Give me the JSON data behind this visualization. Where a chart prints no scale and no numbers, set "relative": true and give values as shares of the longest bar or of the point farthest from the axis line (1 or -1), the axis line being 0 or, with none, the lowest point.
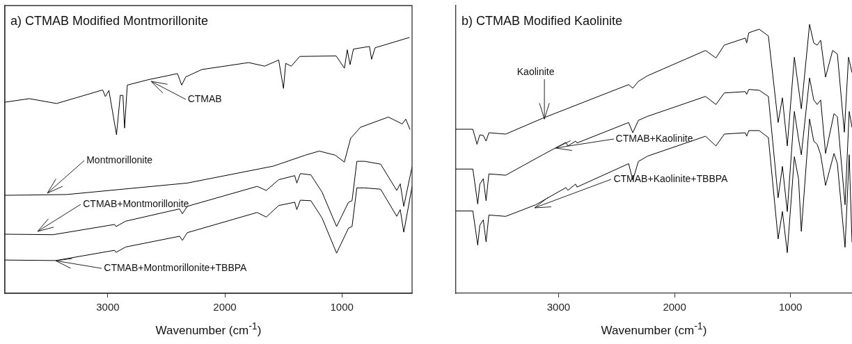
{
  "chart_data": [
    {
      "type": "line",
      "title": "a) CTMAB Modified Montmorillonite",
      "xlabel": "Wavenumber (cm$^{-1}$)",
      "relative": true,
      "xlim": [
        3880,
        400
      ],
      "xticks": [
        3000,
        2000,
        1000
      ],
      "series": [
        {
          "color": "#000000",
          "x": [
            3880,
            3671,
            3438,
            3044,
            3021,
            2991,
            2926,
            2894,
            2871,
            2857,
            2834,
            2655,
            2405,
            2369,
            2334,
            2196,
            1797,
            1660,
            1540,
            1499,
            1480,
            1432,
            1360,
            1049,
            978,
            954,
            930,
            901,
            764,
            746,
            716,
            424
          ],
          "values": [
            0.747,
            0.761,
            0.742,
            0.795,
            0.769,
            0.793,
            0.62,
            0.774,
            0.774,
            0.646,
            0.814,
            0.835,
            0.859,
            0.814,
            0.846,
            0.875,
            0.902,
            0.888,
            0.912,
            0.801,
            0.899,
            0.888,
            0.926,
            0.928,
            0.88,
            0.952,
            0.894,
            0.955,
            0.965,
            0.915,
            0.96,
            1.0
          ]
        },
        {
          "color": "#000000",
          "x": [
            3880,
            3354,
            2321,
            1587,
            1312,
            1193,
            1057,
            979,
            925,
            841,
            603,
            484,
            454,
            418
          ],
          "values": [
            0.383,
            0.386,
            0.431,
            0.497,
            0.54,
            0.556,
            0.54,
            0.513,
            0.606,
            0.649,
            0.689,
            0.662,
            0.681,
            0.641
          ]
        },
        {
          "color": "#000000",
          "x": [
            3880,
            3468,
            2943,
            2930,
            2847,
            2387,
            2363,
            2321,
            1724,
            1646,
            1540,
            1403,
            1385,
            1355,
            1265,
            1170,
            1045,
            943,
            913,
            872,
            806,
            669,
            531,
            501,
            471,
            400
          ],
          "values": [
            0.231,
            0.229,
            0.269,
            0.261,
            0.282,
            0.33,
            0.311,
            0.34,
            0.418,
            0.402,
            0.444,
            0.46,
            0.431,
            0.468,
            0.463,
            0.396,
            0.261,
            0.356,
            0.362,
            0.516,
            0.516,
            0.505,
            0.402,
            0.428,
            0.34,
            0.495
          ]
        },
        {
          "color": "#000000",
          "x": [
            3880,
            3444,
            2943,
            2930,
            2847,
            2387,
            2363,
            2321,
            1724,
            1646,
            1540,
            1403,
            1385,
            1355,
            1265,
            1170,
            1045,
            943,
            913,
            872,
            806,
            669,
            531,
            501,
            471,
            400
          ],
          "values": [
            0.13,
            0.128,
            0.168,
            0.16,
            0.181,
            0.223,
            0.207,
            0.237,
            0.316,
            0.298,
            0.343,
            0.356,
            0.327,
            0.364,
            0.362,
            0.295,
            0.157,
            0.255,
            0.261,
            0.412,
            0.412,
            0.407,
            0.301,
            0.327,
            0.239,
            0.418
          ]
        }
      ],
      "annotations": [
        {
          "text": "CTMAB",
          "x": 2633,
          "y": 0.83
        },
        {
          "text": "Montmorillonite",
          "x": 3516,
          "y": 0.391
        },
        {
          "text": "CTMAB+Montmorillonite",
          "x": 3599,
          "y": 0.242
        },
        {
          "text": "CTMAB+Montmorillonite+TBBPA",
          "x": 3444,
          "y": 0.128
        }
      ]
    },
    {
      "type": "line",
      "title": "b) CTMAB Modified Kaolinite",
      "xlabel": "Wavenumber (cm$^{-1}$)",
      "relative": true,
      "xlim": [
        3885,
        470
      ],
      "xticks": [
        3000,
        2000,
        1000
      ],
      "series": [
        {
          "color": "#000000",
          "x": [
            3885,
            3739,
            3703,
            3679,
            3649,
            3625,
            3601,
            3456,
            3137,
            2396,
            2360,
            2312,
            2233,
            1733,
            1643,
            1571,
            1390,
            1378,
            1360,
            1270,
            1191,
            1107,
            1070,
            1028,
            967,
            931,
            907,
            836,
            800,
            770,
            740,
            698,
            637,
            596,
            536,
            500,
            470
          ],
          "values": [
            0.61,
            0.61,
            0.554,
            0.589,
            0.587,
            0.566,
            0.597,
            0.592,
            0.651,
            0.776,
            0.763,
            0.788,
            0.809,
            0.903,
            0.875,
            0.923,
            0.949,
            0.931,
            0.969,
            0.982,
            0.957,
            0.635,
            0.727,
            0.548,
            0.878,
            0.763,
            0.686,
            1.0,
            0.931,
            0.923,
            0.941,
            0.804,
            0.903,
            0.89,
            0.599,
            0.878,
            0.821
          ]
        },
        {
          "color": "#000000",
          "x": [
            3885,
            3739,
            3697,
            3679,
            3649,
            3625,
            3601,
            3456,
            3137,
            2937,
            2919,
            2853,
            2841,
            2396,
            2360,
            2312,
            2233,
            1733,
            1643,
            1571,
            1390,
            1378,
            1360,
            1270,
            1191,
            1107,
            1070,
            1028,
            967,
            931,
            907,
            836,
            800,
            770,
            740,
            698,
            625,
            596,
            530,
            494,
            470
          ],
          "values": [
            0.462,
            0.462,
            0.332,
            0.406,
            0.426,
            0.344,
            0.444,
            0.439,
            0.515,
            0.561,
            0.548,
            0.566,
            0.559,
            0.635,
            0.597,
            0.643,
            0.658,
            0.732,
            0.702,
            0.745,
            0.75,
            0.74,
            0.758,
            0.755,
            0.732,
            0.355,
            0.472,
            0.304,
            0.676,
            0.574,
            0.515,
            0.801,
            0.719,
            0.702,
            0.719,
            0.52,
            0.668,
            0.656,
            0.329,
            0.676,
            0.617
          ]
        },
        {
          "color": "#000000",
          "x": [
            3885,
            3739,
            3697,
            3679,
            3649,
            3625,
            3601,
            3456,
            3197,
            2937,
            2919,
            2853,
            2841,
            2396,
            2360,
            2312,
            2233,
            1733,
            1643,
            1571,
            1390,
            1378,
            1360,
            1270,
            1191,
            1107,
            1070,
            1028,
            967,
            931,
            907,
            836,
            800,
            770,
            740,
            698,
            625,
            596,
            530,
            494,
            470
          ],
          "values": [
            0.306,
            0.306,
            0.179,
            0.253,
            0.273,
            0.191,
            0.291,
            0.286,
            0.329,
            0.393,
            0.383,
            0.406,
            0.395,
            0.482,
            0.421,
            0.49,
            0.51,
            0.584,
            0.548,
            0.592,
            0.597,
            0.584,
            0.605,
            0.605,
            0.579,
            0.202,
            0.304,
            0.151,
            0.508,
            0.426,
            0.23,
            0.648,
            0.566,
            0.554,
            0.515,
            0.401,
            0.52,
            0.482,
            0.171,
            0.515,
            0.191
          ]
        }
      ],
      "annotations": [
        {
          "text": "Kaolinite",
          "x": 3125,
          "y": 0.648
        },
        {
          "text": "CTMAB+Kaolinite",
          "x": 3029,
          "y": 0.54
        },
        {
          "text": "CTMAB+Kaolinite+TBBPA",
          "x": 3204,
          "y": 0.319
        }
      ]
    }
  ]
}
